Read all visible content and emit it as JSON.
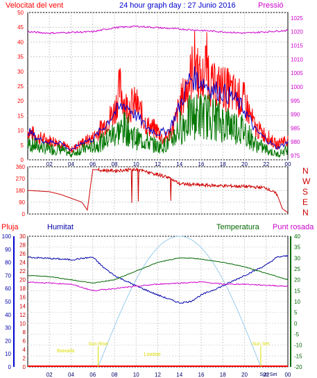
{
  "header": {
    "title": "24 hour graph day : 27 Junio 2016",
    "left_label": "Velocitat del vent",
    "right_label": "Pressió"
  },
  "legends": {
    "pluja": "Pluja",
    "humitat": "Humitat",
    "temperatura": "Temperatura",
    "punt_rosada": "Punt rosada"
  },
  "colors": {
    "wind_speed": "#ff0000",
    "wind_avg": "#0000cc",
    "wind_gust": "#007700",
    "pressure": "#cc00cc",
    "direction": "#cc0000",
    "humidity": "#0000aa",
    "temperature": "#006600",
    "dewpoint": "#cc00cc",
    "solar": "#99ccee",
    "rain": "#ff0000",
    "events": "#dddd00",
    "axis_left": "#ff0000",
    "axis_right": "#cc00cc"
  },
  "chart_data": [
    {
      "type": "line",
      "name": "wind",
      "x_ticks": [
        "02",
        "04",
        "06",
        "08",
        "10",
        "12",
        "14",
        "16",
        "18",
        "20",
        "22",
        "00"
      ],
      "y_left_ticks": [
        0,
        5,
        10,
        15,
        20,
        25,
        30,
        35,
        40,
        45,
        50
      ],
      "y_left_range": [
        0,
        50
      ],
      "y_right_ticks": [
        975,
        980,
        985,
        990,
        995,
        1000,
        1005,
        1010,
        1015,
        1020,
        1025
      ],
      "y_right_range": [
        973.5,
        1027
      ],
      "x_range": [
        0,
        24
      ],
      "series": [
        {
          "key": "speed",
          "x": [
            0,
            1,
            2,
            3,
            4,
            5,
            6,
            7,
            8,
            8.5,
            9,
            10,
            11,
            12,
            12.5,
            13,
            13.5,
            14,
            15,
            15.5,
            16,
            16.5,
            17,
            18,
            19,
            20,
            21,
            22,
            23,
            23.5,
            24
          ],
          "y": [
            12,
            9,
            8,
            7,
            4,
            7,
            9,
            14,
            20,
            30,
            22,
            23,
            14,
            12,
            8,
            10,
            14,
            22,
            34,
            42,
            30,
            40,
            30,
            30,
            27,
            24,
            13,
            10,
            6,
            8,
            8
          ]
        },
        {
          "key": "avg",
          "x": [
            0,
            1,
            2,
            3,
            4,
            5,
            6,
            7,
            8,
            9,
            10,
            11,
            12,
            13,
            14,
            15,
            16,
            17,
            18,
            19,
            20,
            21,
            22,
            23,
            24
          ],
          "y": [
            10,
            7,
            6,
            6,
            3,
            6,
            7,
            11,
            16,
            19,
            15,
            11,
            9,
            10,
            18,
            28,
            27,
            24,
            23,
            21,
            17,
            10,
            7,
            4,
            6
          ]
        },
        {
          "key": "gust",
          "x": [
            0,
            1,
            2,
            3,
            4,
            5,
            6,
            7,
            8,
            9,
            10,
            11,
            12,
            13,
            14,
            15,
            16,
            17,
            18,
            19,
            20,
            21,
            22,
            23,
            24
          ],
          "y": [
            6,
            5,
            4,
            4,
            2,
            4,
            5,
            7,
            10,
            12,
            8,
            7,
            5,
            6,
            12,
            16,
            17,
            16,
            14,
            13,
            11,
            6,
            4,
            2,
            4
          ]
        },
        {
          "key": "pressure",
          "x": [
            0,
            2,
            4,
            6,
            8,
            10,
            12,
            14,
            16,
            18,
            20,
            22,
            24
          ],
          "y": [
            1020,
            1019.5,
            1019.8,
            1020,
            1021.5,
            1022,
            1021.5,
            1021,
            1020.5,
            1020,
            1019.5,
            1020,
            1020.5
          ]
        }
      ]
    },
    {
      "type": "line",
      "name": "wind_direction",
      "y_ticks": [
        0,
        90,
        180,
        270,
        360
      ],
      "y_range": [
        0,
        360
      ],
      "compass_labels": [
        "N",
        "W",
        "S",
        "E",
        "N"
      ],
      "x": [
        0,
        1,
        2,
        3,
        4,
        5,
        5.5,
        6,
        6.5,
        8,
        10,
        11,
        12,
        13,
        14,
        16,
        18,
        20,
        22,
        23,
        23.5,
        24
      ],
      "y": [
        180,
        175,
        170,
        150,
        120,
        90,
        30,
        340,
        335,
        330,
        340,
        320,
        300,
        280,
        230,
        220,
        215,
        210,
        200,
        150,
        40,
        10
      ]
    },
    {
      "type": "line",
      "name": "climate",
      "pluja_ticks": [
        0,
        2,
        4,
        6,
        8,
        10,
        12,
        14,
        16,
        18,
        20,
        22,
        24,
        26,
        28,
        30
      ],
      "humitat_ticks": [
        0,
        10,
        20,
        30,
        40,
        50,
        60,
        70,
        80,
        90,
        100
      ],
      "temp_ticks": [
        -20,
        -15,
        -10,
        -5,
        0,
        5,
        10,
        15,
        20,
        25,
        30,
        35,
        40
      ],
      "temp_range": [
        -20,
        40
      ],
      "x_range": [
        0,
        24
      ],
      "humidity": {
        "x": [
          0,
          2,
          4,
          5,
          6,
          7,
          8,
          10,
          12,
          14,
          15,
          16,
          18,
          20,
          22,
          23,
          24
        ],
        "y": [
          84,
          83,
          82,
          83,
          84,
          76,
          70,
          62,
          55,
          49,
          50,
          55,
          62,
          70,
          78,
          84,
          85
        ]
      },
      "temperature": {
        "x": [
          0,
          2,
          4,
          6,
          8,
          10,
          12,
          14,
          15,
          16,
          18,
          20,
          22,
          24
        ],
        "y": [
          22,
          21.5,
          20,
          18.5,
          20,
          24,
          28,
          30,
          30,
          29.5,
          28,
          26,
          23,
          20
        ]
      },
      "dewpoint": {
        "x": [
          0,
          2,
          4,
          6,
          8,
          10,
          12,
          14,
          16,
          18,
          20,
          22,
          24
        ],
        "y": [
          19,
          18.5,
          18,
          15,
          16,
          17,
          18,
          18.5,
          19,
          18,
          18,
          17.5,
          17
        ]
      },
      "solar_peak_hour": 14,
      "events": [
        {
          "label": "Sun Rise",
          "hour": 6.5
        },
        {
          "label": "Baixada",
          "hour": 3.5
        },
        {
          "label": "Lowtide",
          "hour": 11.5
        },
        {
          "label": "Sun Set",
          "hour": 21.5
        },
        {
          "label": "Sun Set",
          "hour": 22.2
        }
      ],
      "x_ticks": [
        "02",
        "04",
        "06",
        "08",
        "10",
        "12",
        "14",
        "16",
        "18",
        "20",
        "22",
        "00"
      ]
    }
  ]
}
